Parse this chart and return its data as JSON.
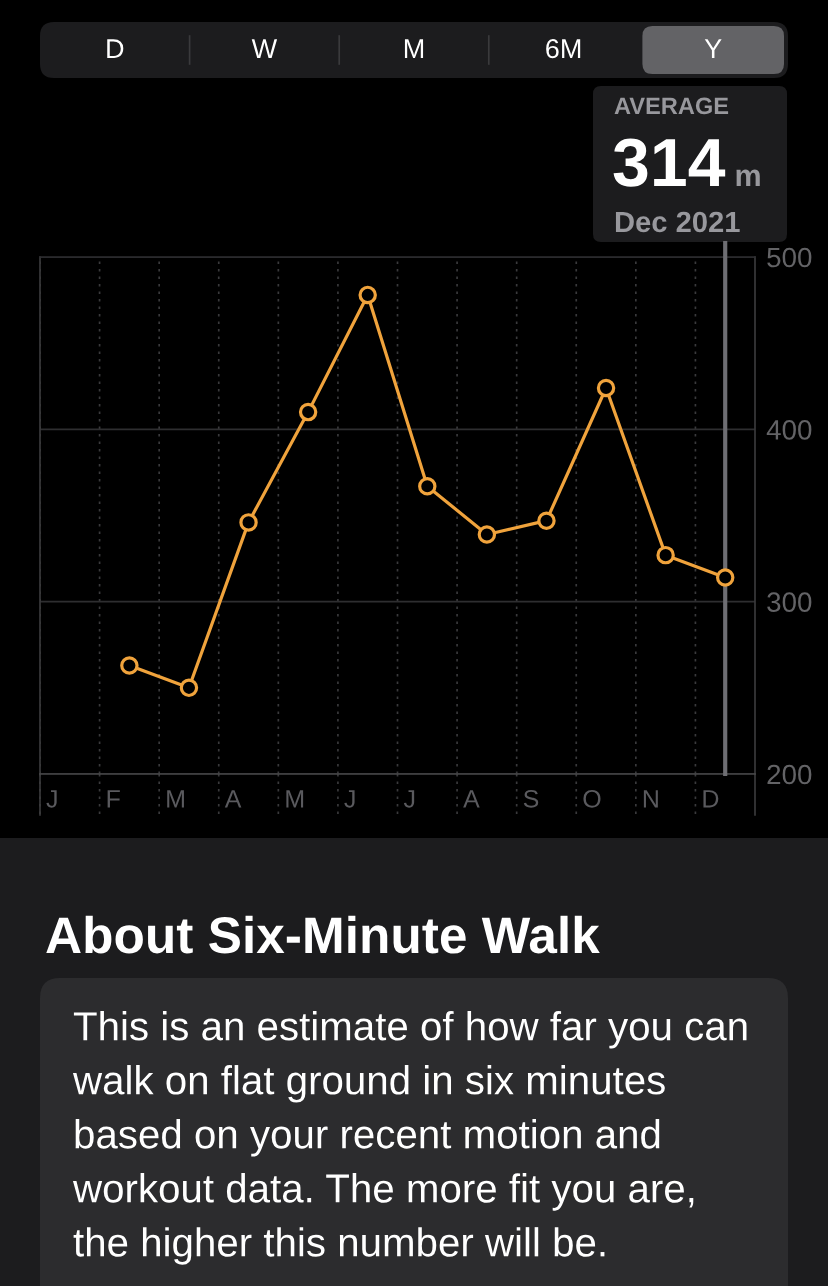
{
  "chart_data": {
    "type": "line",
    "categories": [
      "J",
      "F",
      "M",
      "A",
      "M",
      "J",
      "J",
      "A",
      "S",
      "O",
      "N",
      "D"
    ],
    "values": [
      null,
      263,
      250,
      346,
      410,
      478,
      367,
      339,
      347,
      424,
      327,
      314
    ],
    "color": "#f0a33c",
    "marker": "circle",
    "line_style": "solid",
    "ylim": [
      200,
      500
    ],
    "yticks": [
      200,
      300,
      400,
      500
    ],
    "grid": true,
    "ref_lines": [
      {
        "axis": "x",
        "value": "D",
        "color": "#6e6e73"
      }
    ],
    "annotations": [
      "D",
      "W",
      "M",
      "6M",
      "Y",
      "AVERAGE",
      "314",
      "m",
      "Dec 2021",
      "About Six-Minute Walk",
      "This is an estimate of how far you can\nwalk on flat ground in six minutes\nbased on your recent motion and\nworkout data. The more fit you are,\nthe higher this number will be."
    ]
  }
}
